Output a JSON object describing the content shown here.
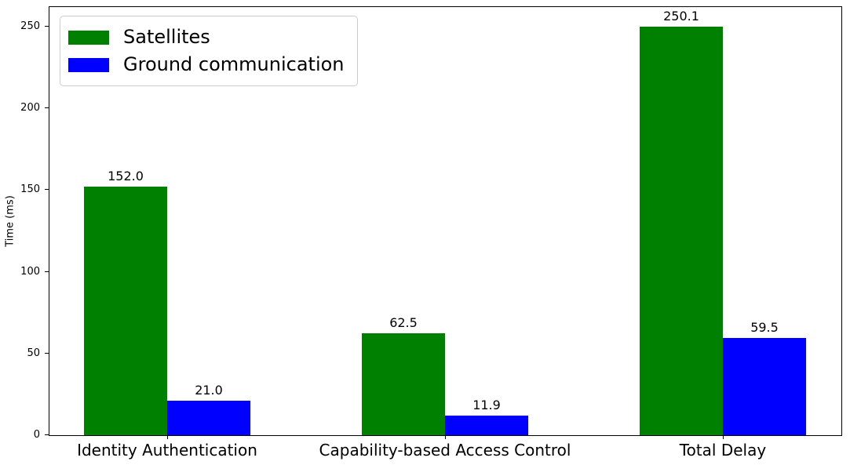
{
  "chart_data": {
    "type": "bar",
    "title": "",
    "xlabel": "",
    "ylabel": "Time (ms)",
    "categories": [
      "Identity Authentication",
      "Capability-based Access Control",
      "Total Delay"
    ],
    "series": [
      {
        "name": "Satellites",
        "color": "#008000",
        "values": [
          152.0,
          62.5,
          250.1
        ],
        "value_labels": [
          "152.0",
          "62.5",
          "250.1"
        ]
      },
      {
        "name": "Ground communication",
        "color": "#0000ff",
        "values": [
          21.0,
          11.9,
          59.5
        ],
        "value_labels": [
          "21.0",
          "11.9",
          "59.5"
        ]
      }
    ],
    "yticks": [
      0,
      50,
      100,
      150,
      200,
      250
    ],
    "ytick_labels": [
      "0",
      "50",
      "100",
      "150",
      "200",
      "250"
    ],
    "ylim": [
      0,
      262
    ],
    "grid": false,
    "legend_position": "upper left",
    "axis_color": "#000000",
    "background_color": "#ffffff"
  }
}
